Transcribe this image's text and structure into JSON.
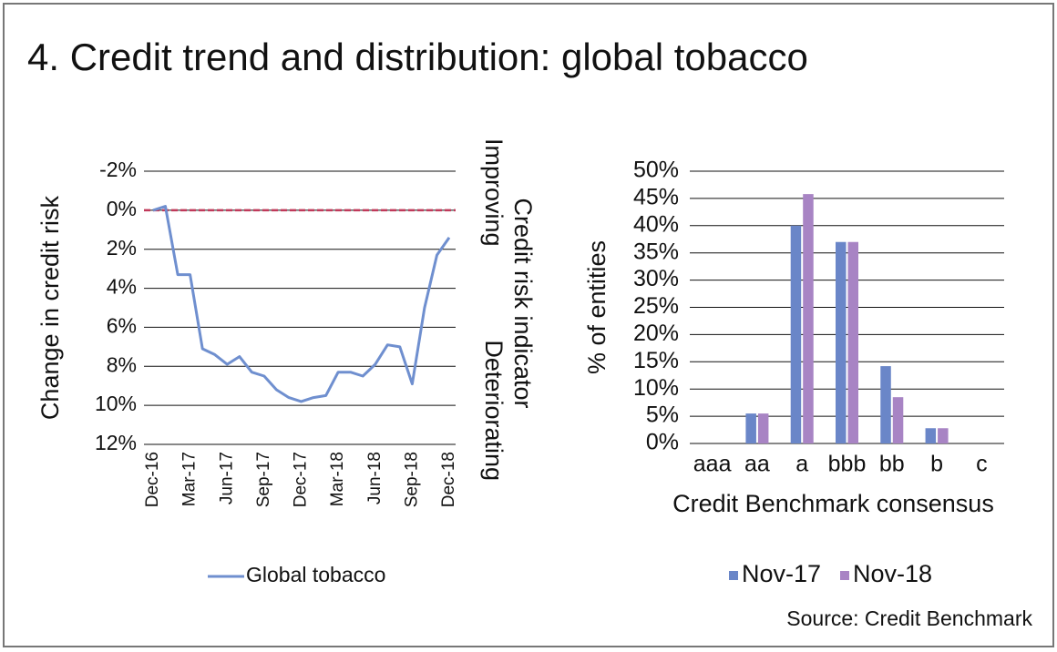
{
  "title": "4. Credit trend and distribution: global tobacco",
  "source": "Source: Credit Benchmark",
  "chart_data": [
    {
      "type": "line",
      "y_title": "Change in credit risk",
      "y2_title": "Credit risk indicator",
      "annotations": [
        "Improving",
        "Deteriorating"
      ],
      "x": [
        "Dec-16",
        null,
        null,
        "Mar-17",
        null,
        null,
        "Jun-17",
        null,
        null,
        "Sep-17",
        null,
        null,
        "Dec-17",
        null,
        null,
        "Mar-18",
        null,
        null,
        "Jun-18",
        null,
        null,
        "Sep-18",
        null,
        null,
        "Dec-18"
      ],
      "series": [
        {
          "name": "Global tobacco",
          "color": "#6f8fcf",
          "values": [
            0.0,
            -0.2,
            3.3,
            3.3,
            7.1,
            7.4,
            7.9,
            7.5,
            8.3,
            8.5,
            9.2,
            9.6,
            9.8,
            9.6,
            9.5,
            8.3,
            8.3,
            8.5,
            7.9,
            6.9,
            7.0,
            8.9,
            5.0,
            2.3,
            1.4
          ]
        }
      ],
      "ylim": [
        -2,
        12
      ],
      "y_inverted": true,
      "yticks": [
        {
          "value": -2,
          "label": "-2%"
        },
        {
          "value": 0,
          "label": "0%"
        },
        {
          "value": 2,
          "label": "2%"
        },
        {
          "value": 4,
          "label": "4%"
        },
        {
          "value": 6,
          "label": "6%"
        },
        {
          "value": 8,
          "label": "8%"
        },
        {
          "value": 10,
          "label": "10%"
        },
        {
          "value": 12,
          "label": "12%"
        }
      ],
      "reference_line": {
        "value": 0,
        "color": "#c0395a"
      },
      "grid": true
    },
    {
      "type": "bar",
      "x_title": "Credit Benchmark consensus",
      "y_title": "% of entities",
      "categories": [
        "aaa",
        "aa",
        "a",
        "bbb",
        "bb",
        "b",
        "c"
      ],
      "series": [
        {
          "name": "Nov-17",
          "color": "#6a86c8",
          "values": [
            0,
            5.5,
            40,
            37,
            14.2,
            2.8,
            0
          ]
        },
        {
          "name": "Nov-18",
          "color": "#a884c4",
          "values": [
            0,
            5.5,
            45.8,
            37,
            8.5,
            2.8,
            0
          ]
        }
      ],
      "ylim": [
        0,
        50
      ],
      "yticks": [
        {
          "value": 0,
          "label": "0%"
        },
        {
          "value": 5,
          "label": "5%"
        },
        {
          "value": 10,
          "label": "10%"
        },
        {
          "value": 15,
          "label": "15%"
        },
        {
          "value": 20,
          "label": "20%"
        },
        {
          "value": 25,
          "label": "25%"
        },
        {
          "value": 30,
          "label": "30%"
        },
        {
          "value": 35,
          "label": "35%"
        },
        {
          "value": 40,
          "label": "40%"
        },
        {
          "value": 45,
          "label": "45%"
        },
        {
          "value": 50,
          "label": "50%"
        }
      ],
      "grid": true
    }
  ]
}
